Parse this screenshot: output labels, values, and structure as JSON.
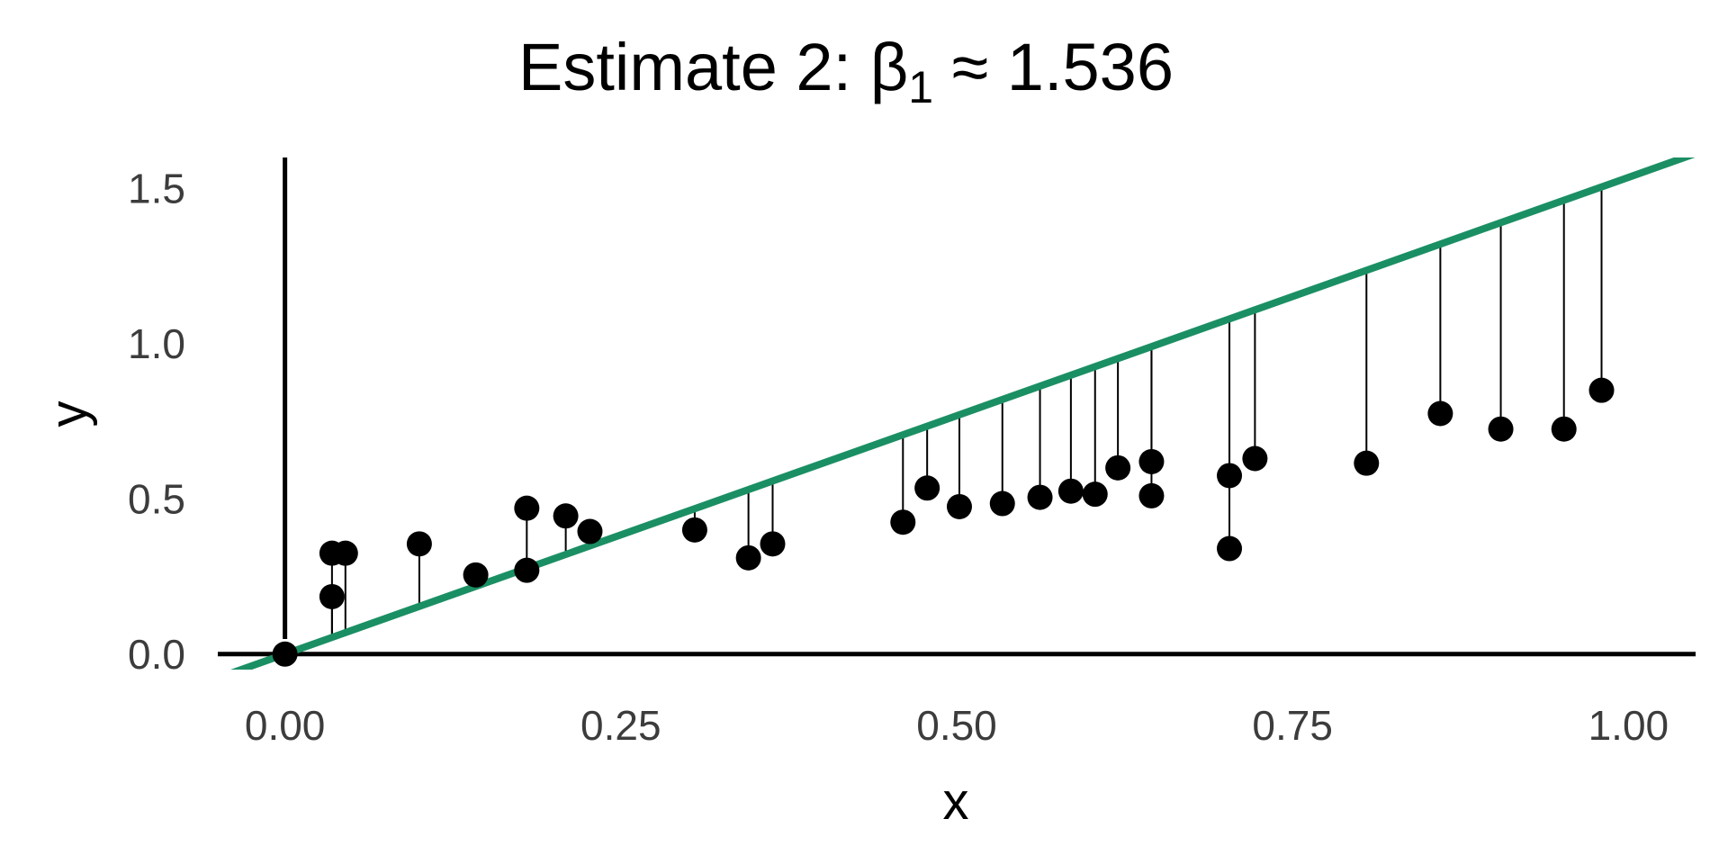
{
  "chart_data": {
    "type": "scatter",
    "title": "Estimate 2: β₁ ≈ 1.536",
    "title_parts": {
      "prefix": "Estimate 2: β",
      "subscript": "1",
      "suffix": " ≈ 1.536"
    },
    "xlabel": "x",
    "ylabel": "y",
    "xlim": [
      -0.05,
      1.05
    ],
    "ylim": [
      -0.05,
      1.6
    ],
    "x_ticks": [
      0.0,
      0.25,
      0.5,
      0.75,
      1.0
    ],
    "x_tick_labels": [
      "0.00",
      "0.25",
      "0.50",
      "0.75",
      "1.00"
    ],
    "y_ticks": [
      0.0,
      0.5,
      1.0,
      1.5
    ],
    "y_tick_labels": [
      "0.0",
      "0.5",
      "1.0",
      "1.5"
    ],
    "grid": false,
    "fit_line": {
      "slope": 1.536,
      "intercept": 0,
      "color": "#1b8f64"
    },
    "point_color": "#000000",
    "residual_color": "#000000",
    "points": [
      {
        "x": 0.0,
        "y": 0.0
      },
      {
        "x": 0.035,
        "y": 0.325
      },
      {
        "x": 0.035,
        "y": 0.185
      },
      {
        "x": 0.045,
        "y": 0.325
      },
      {
        "x": 0.1,
        "y": 0.355
      },
      {
        "x": 0.142,
        "y": 0.255
      },
      {
        "x": 0.18,
        "y": 0.47
      },
      {
        "x": 0.18,
        "y": 0.27
      },
      {
        "x": 0.209,
        "y": 0.445
      },
      {
        "x": 0.227,
        "y": 0.395
      },
      {
        "x": 0.305,
        "y": 0.4
      },
      {
        "x": 0.345,
        "y": 0.31
      },
      {
        "x": 0.363,
        "y": 0.355
      },
      {
        "x": 0.46,
        "y": 0.425
      },
      {
        "x": 0.478,
        "y": 0.535
      },
      {
        "x": 0.502,
        "y": 0.475
      },
      {
        "x": 0.534,
        "y": 0.485
      },
      {
        "x": 0.562,
        "y": 0.505
      },
      {
        "x": 0.585,
        "y": 0.525
      },
      {
        "x": 0.603,
        "y": 0.515
      },
      {
        "x": 0.62,
        "y": 0.6
      },
      {
        "x": 0.645,
        "y": 0.62
      },
      {
        "x": 0.645,
        "y": 0.51
      },
      {
        "x": 0.703,
        "y": 0.575
      },
      {
        "x": 0.703,
        "y": 0.34
      },
      {
        "x": 0.722,
        "y": 0.63
      },
      {
        "x": 0.805,
        "y": 0.615
      },
      {
        "x": 0.86,
        "y": 0.775
      },
      {
        "x": 0.905,
        "y": 0.725
      },
      {
        "x": 0.952,
        "y": 0.725
      },
      {
        "x": 0.98,
        "y": 0.85
      }
    ]
  }
}
